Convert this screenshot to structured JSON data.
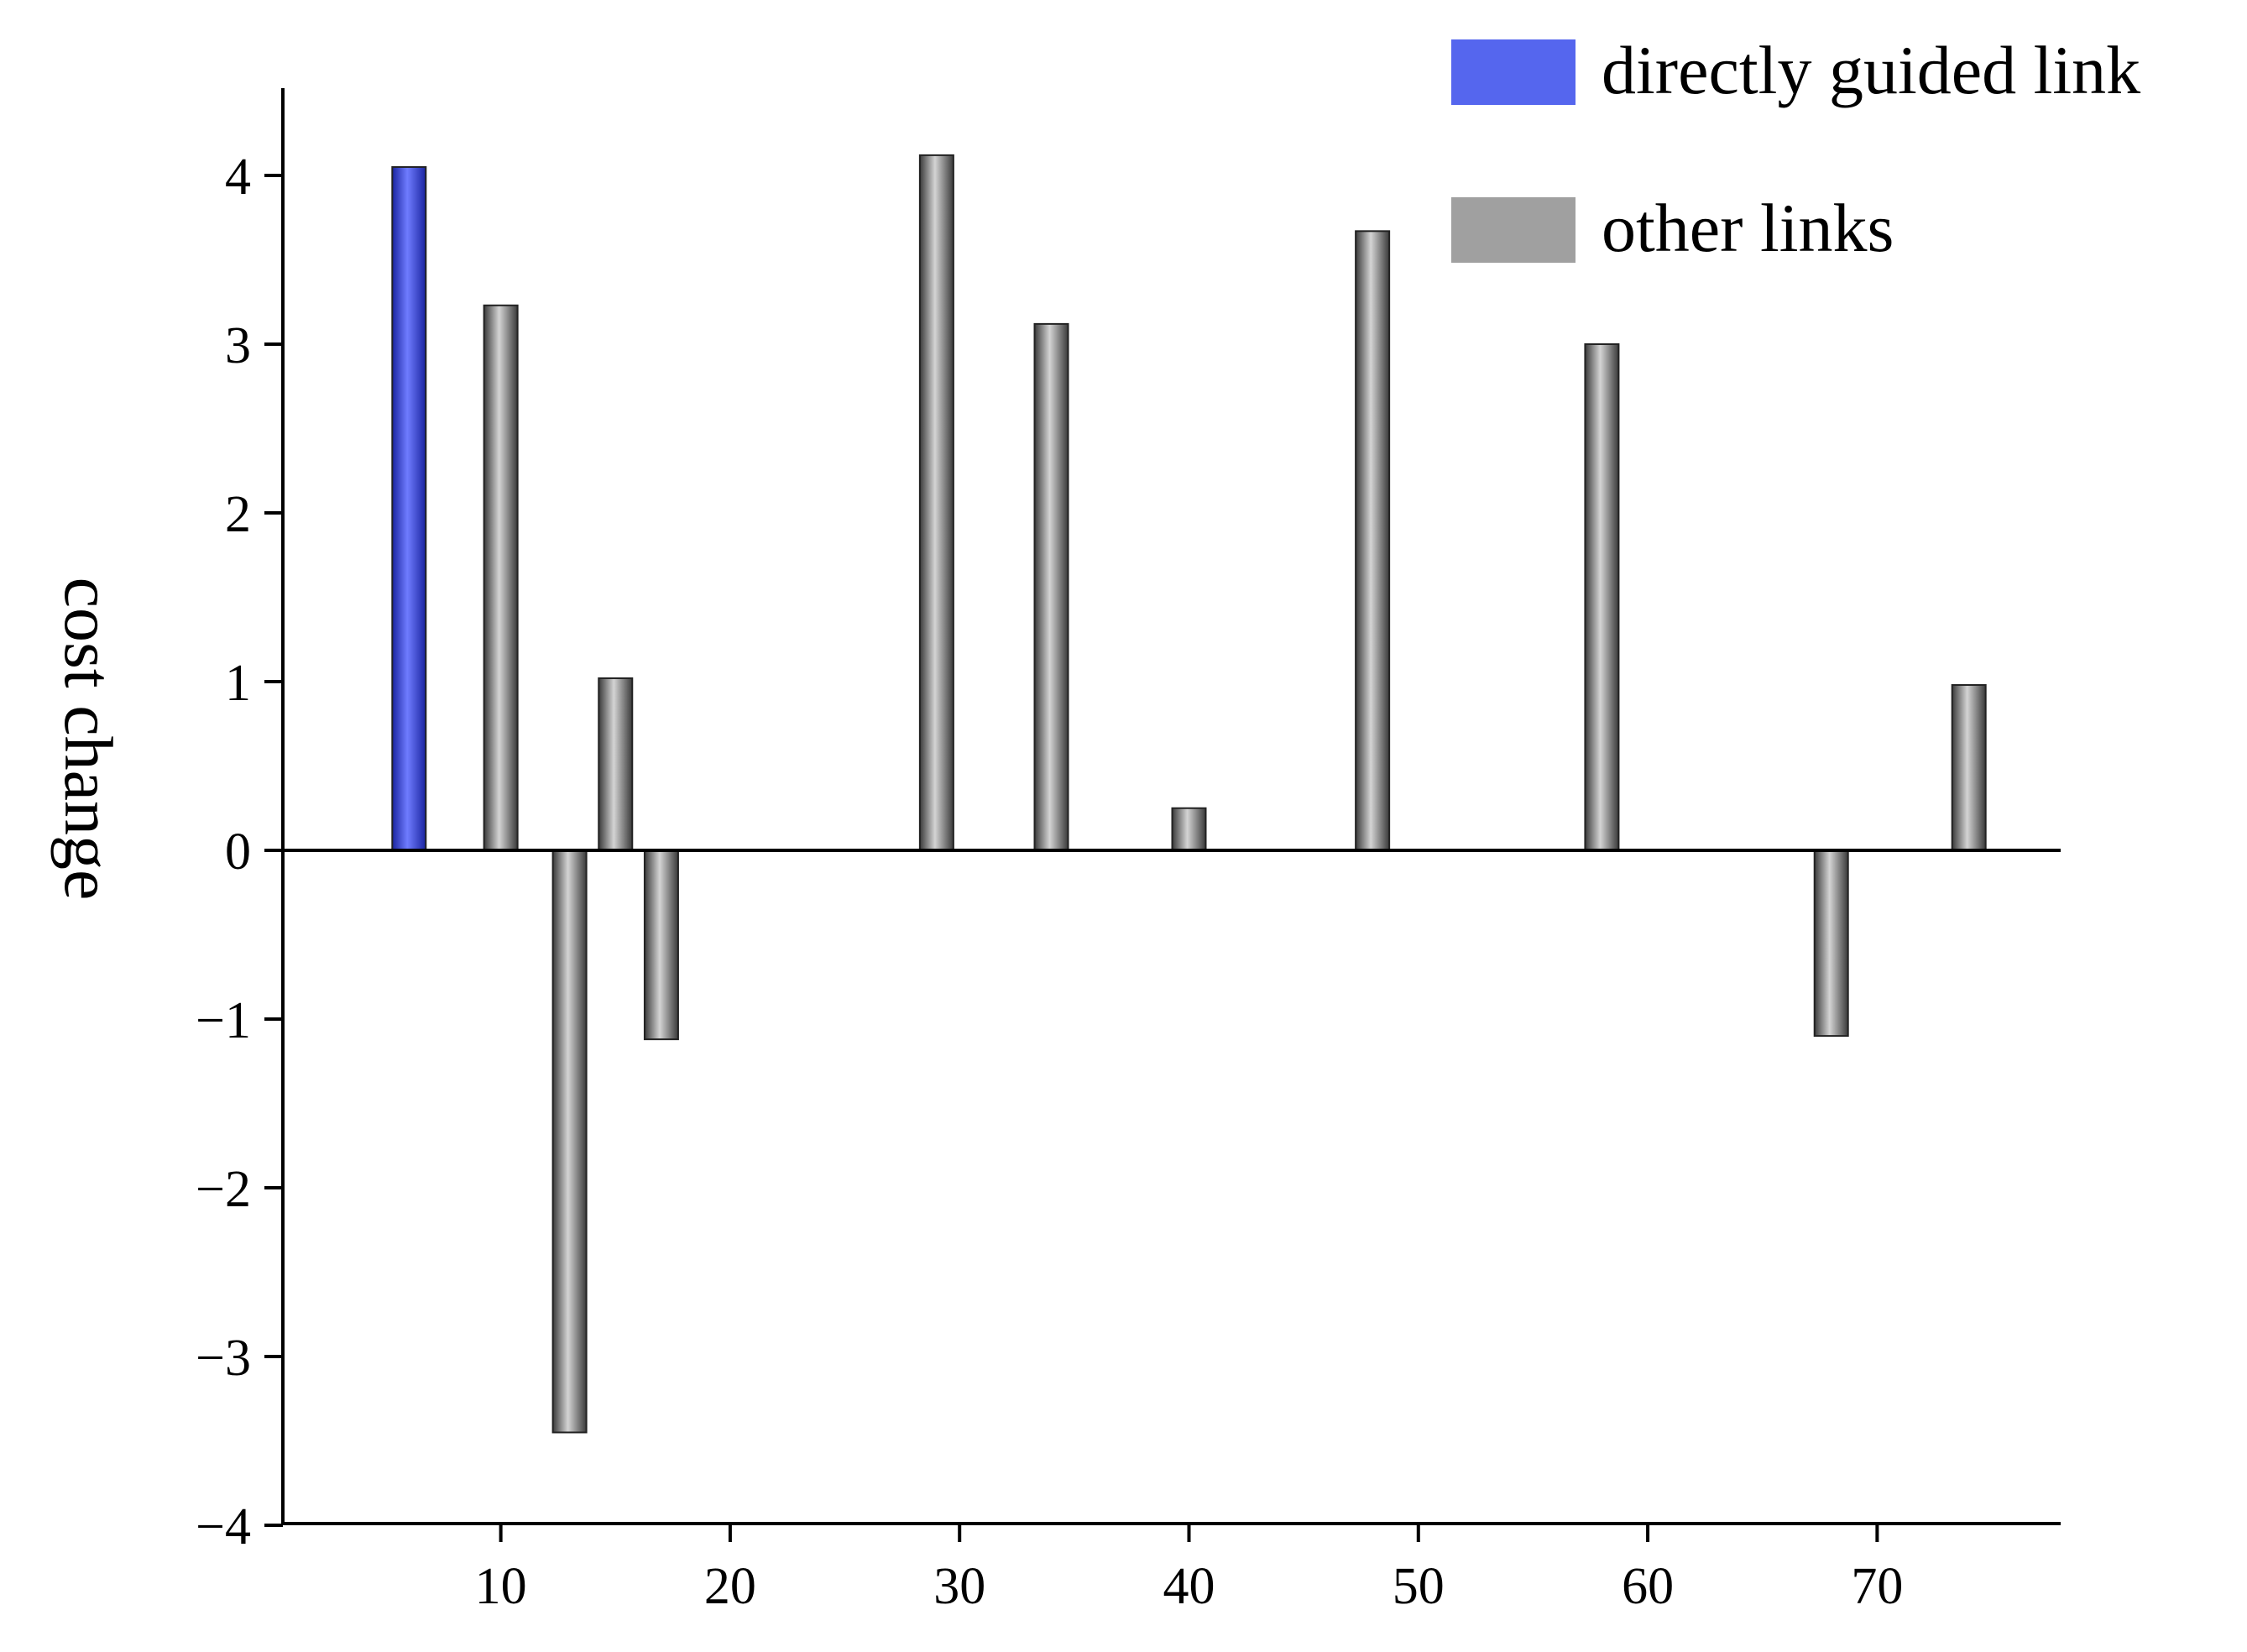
{
  "chart_data": {
    "type": "bar",
    "title": "",
    "xlabel": "",
    "ylabel": "cost change",
    "xlim": [
      0.5,
      78
    ],
    "ylim": [
      -4,
      4.5
    ],
    "x_ticks": [
      10,
      20,
      30,
      40,
      50,
      60,
      70
    ],
    "y_ticks": [
      -4,
      -3,
      -2,
      -1,
      0,
      1,
      2,
      3,
      4
    ],
    "grid": false,
    "legend_position": "top-right",
    "series": [
      {
        "name": "directly guided link",
        "color": "#5566ee",
        "points": [
          {
            "x": 6,
            "y": 4.05
          }
        ]
      },
      {
        "name": "other links",
        "color": "#a0a0a0",
        "points": [
          {
            "x": 10,
            "y": 3.23
          },
          {
            "x": 13,
            "y": -3.45
          },
          {
            "x": 15,
            "y": 1.02
          },
          {
            "x": 17,
            "y": -1.12
          },
          {
            "x": 29,
            "y": 4.12
          },
          {
            "x": 34,
            "y": 3.12
          },
          {
            "x": 40,
            "y": 0.25
          },
          {
            "x": 48,
            "y": 3.67
          },
          {
            "x": 58,
            "y": 3.0
          },
          {
            "x": 68,
            "y": -1.1
          },
          {
            "x": 74,
            "y": 0.98
          }
        ]
      }
    ]
  }
}
